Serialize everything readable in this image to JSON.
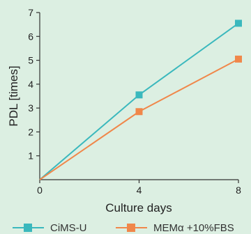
{
  "chart_data": {
    "type": "line",
    "xlabel": "Culture days",
    "ylabel": "PDL [times]",
    "x": [
      0,
      4,
      8
    ],
    "xticks": [
      "0",
      "4",
      "8"
    ],
    "yticks": [
      "1",
      "2",
      "3",
      "4",
      "5",
      "6",
      "7"
    ],
    "xlim": [
      0,
      8
    ],
    "ylim": [
      0,
      7
    ],
    "grid": false,
    "legend_position": "bottom",
    "series": [
      {
        "name": "CiMS-U",
        "color": "#3ab8bd",
        "values": [
          0,
          3.55,
          6.55
        ]
      },
      {
        "name": "MEMα +10%FBS",
        "color": "#f0874a",
        "values": [
          0,
          2.85,
          5.05
        ]
      }
    ]
  }
}
